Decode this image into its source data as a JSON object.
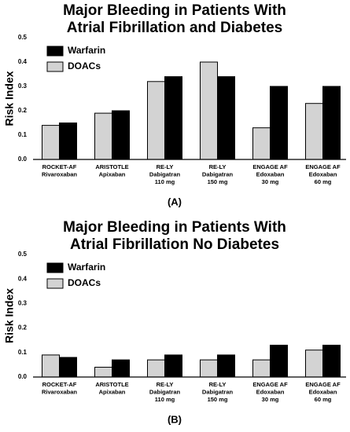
{
  "chart_data": [
    {
      "type": "bar",
      "title": "Major Bleeding in Patients With\nAtrial Fibrillation and Diabetes",
      "y_label": "Risk Index",
      "panel_label": "(A)",
      "categories": [
        "ROCKET-AF\nRivaroxaban",
        "ARISTOTLE\nApixaban",
        "RE-LY\nDabigatran\n110 mg",
        "RE-LY\nDabigatran\n150 mg",
        "ENGAGE AF\nEdoxaban\n30 mg",
        "ENGAGE AF\nEdoxaban\n60 mg"
      ],
      "series": [
        {
          "name": "Warfarin",
          "color": "#000000",
          "values": [
            0.15,
            0.2,
            0.34,
            0.34,
            0.3,
            0.3
          ]
        },
        {
          "name": "DOACs",
          "color": "#d3d3d3",
          "values": [
            0.14,
            0.19,
            0.32,
            0.4,
            0.13,
            0.23
          ]
        }
      ],
      "ylim": [
        0,
        0.5
      ],
      "yticks": [
        {
          "value": 0,
          "label": "0.0"
        },
        0.1,
        0.2,
        0.3,
        0.4,
        0.5
      ],
      "legend": "upper left"
    },
    {
      "type": "bar",
      "title": "Major Bleeding in Patients With\nAtrial Fibrillation No Diabetes",
      "y_label": "Risk Index",
      "panel_label": "(B)",
      "categories": [
        "ROCKET-AF\nRivaroxaban",
        "ARISTOTLE\nApixaban",
        "RE-LY\nDabigatran\n110 mg",
        "RE-LY\nDabigatran\n150 mg",
        "ENGAGE AF\nEdoxaban\n30 mg",
        "ENGAGE AF\nEdoxaban\n60 mg"
      ],
      "series": [
        {
          "name": "Warfarin",
          "color": "#000000",
          "values": [
            0.08,
            0.07,
            0.09,
            0.09,
            0.13,
            0.13
          ]
        },
        {
          "name": "DOACs",
          "color": "#d3d3d3",
          "values": [
            0.09,
            0.04,
            0.07,
            0.07,
            0.07,
            0.11
          ]
        }
      ],
      "ylim": [
        0,
        0.5
      ],
      "yticks": [
        {
          "value": 0,
          "label": "0.0"
        },
        0.1,
        0.2,
        0.3,
        0.4,
        0.5
      ],
      "legend": "upper left"
    }
  ]
}
